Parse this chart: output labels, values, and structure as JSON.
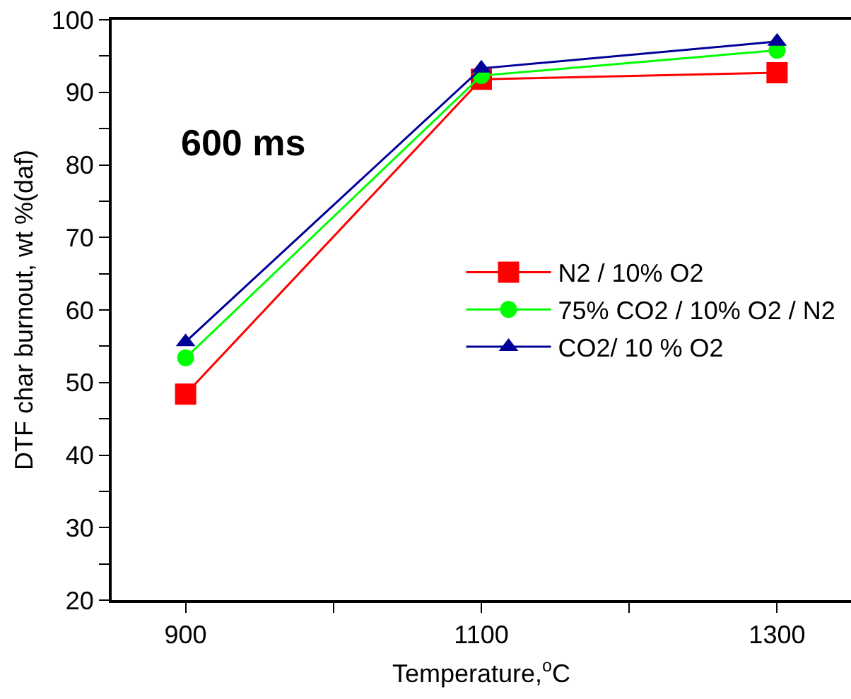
{
  "chart_data": {
    "type": "line",
    "xlabel": "Temperature,$^{o}$C",
    "ylabel": "DTF char burnout, wt %(daf)",
    "annotations": [
      "600 ms"
    ],
    "x": [
      900,
      1100,
      1300
    ],
    "series": [
      {
        "name": "N2 / 10% O2",
        "color": "#ff0000",
        "marker": "square",
        "values": [
          48.4,
          91.8,
          92.7
        ]
      },
      {
        "name": "75% CO2 / 10% O2 / N2",
        "color": "#00ff00",
        "marker": "circle",
        "values": [
          53.4,
          92.3,
          95.8
        ]
      },
      {
        "name": "CO2/ 10 % O2",
        "color": "#000099",
        "marker": "triangle",
        "values": [
          55.6,
          93.3,
          97.0
        ]
      }
    ],
    "xlim": [
      850,
      1350
    ],
    "xticks": [
      900,
      {
        "value": 1000,
        "label": null
      },
      1100,
      {
        "value": 1200,
        "label": null
      },
      1300
    ],
    "ylim": [
      20,
      100
    ],
    "yticks": [
      20,
      {
        "value": 25,
        "label": null
      },
      30,
      {
        "value": 35,
        "label": null
      },
      40,
      {
        "value": 45,
        "label": null
      },
      50,
      {
        "value": 55,
        "label": null
      },
      60,
      {
        "value": 65,
        "label": null
      },
      70,
      {
        "value": 75,
        "label": null
      },
      80,
      {
        "value": 85,
        "label": null
      },
      90,
      {
        "value": 95,
        "label": null
      },
      100
    ],
    "grid": false,
    "legend": "right",
    "line_style": "solid"
  }
}
